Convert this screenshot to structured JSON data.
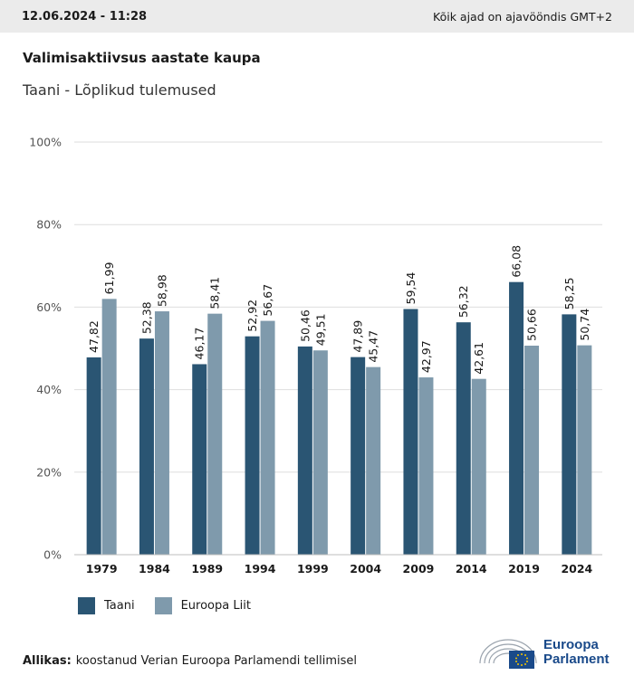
{
  "header": {
    "timestamp": "12.06.2024 - 11:28",
    "timezone_note": "Kõik ajad on ajavööndis GMT+2"
  },
  "title": "Valimisaktiivsus aastate kaupa",
  "subtitle": "Taani - Lõplikud tulemused",
  "legend": {
    "items": [
      {
        "label": "Taani",
        "color": "#2a5573"
      },
      {
        "label": "Euroopa Liit",
        "color": "#7f9aac"
      }
    ]
  },
  "source": {
    "label": "Allikas:",
    "text": "koostanud Verian Euroopa Parlamendi tellimisel"
  },
  "logo": {
    "line1": "Euroopa",
    "line2": "Parlament"
  },
  "chart_data": {
    "type": "bar",
    "categories": [
      "1979",
      "1984",
      "1989",
      "1994",
      "1999",
      "2004",
      "2009",
      "2014",
      "2019",
      "2024"
    ],
    "series": [
      {
        "name": "Taani",
        "color": "#2a5573",
        "values": [
          47.82,
          52.38,
          46.17,
          52.92,
          50.46,
          47.89,
          59.54,
          56.32,
          66.08,
          58.25
        ]
      },
      {
        "name": "Euroopa Liit",
        "color": "#7f9aac",
        "values": [
          61.99,
          58.98,
          58.41,
          56.67,
          49.51,
          45.47,
          42.97,
          42.61,
          50.66,
          50.74
        ]
      }
    ],
    "data_labels": [
      [
        "47,82",
        "52,38",
        "46,17",
        "52,92",
        "50,46",
        "47,89",
        "59,54",
        "56,32",
        "66,08",
        "58,25"
      ],
      [
        "61,99",
        "58,98",
        "58,41",
        "56,67",
        "49,51",
        "45,47",
        "42,97",
        "42,61",
        "50,66",
        "50,74"
      ]
    ],
    "y_ticks": [
      0,
      20,
      40,
      60,
      80,
      100
    ],
    "y_tick_labels": [
      "0%",
      "20%",
      "40%",
      "60%",
      "80%",
      "100%"
    ],
    "ylim": [
      0,
      100
    ],
    "grid": true,
    "legend_position": "bottom-left"
  }
}
